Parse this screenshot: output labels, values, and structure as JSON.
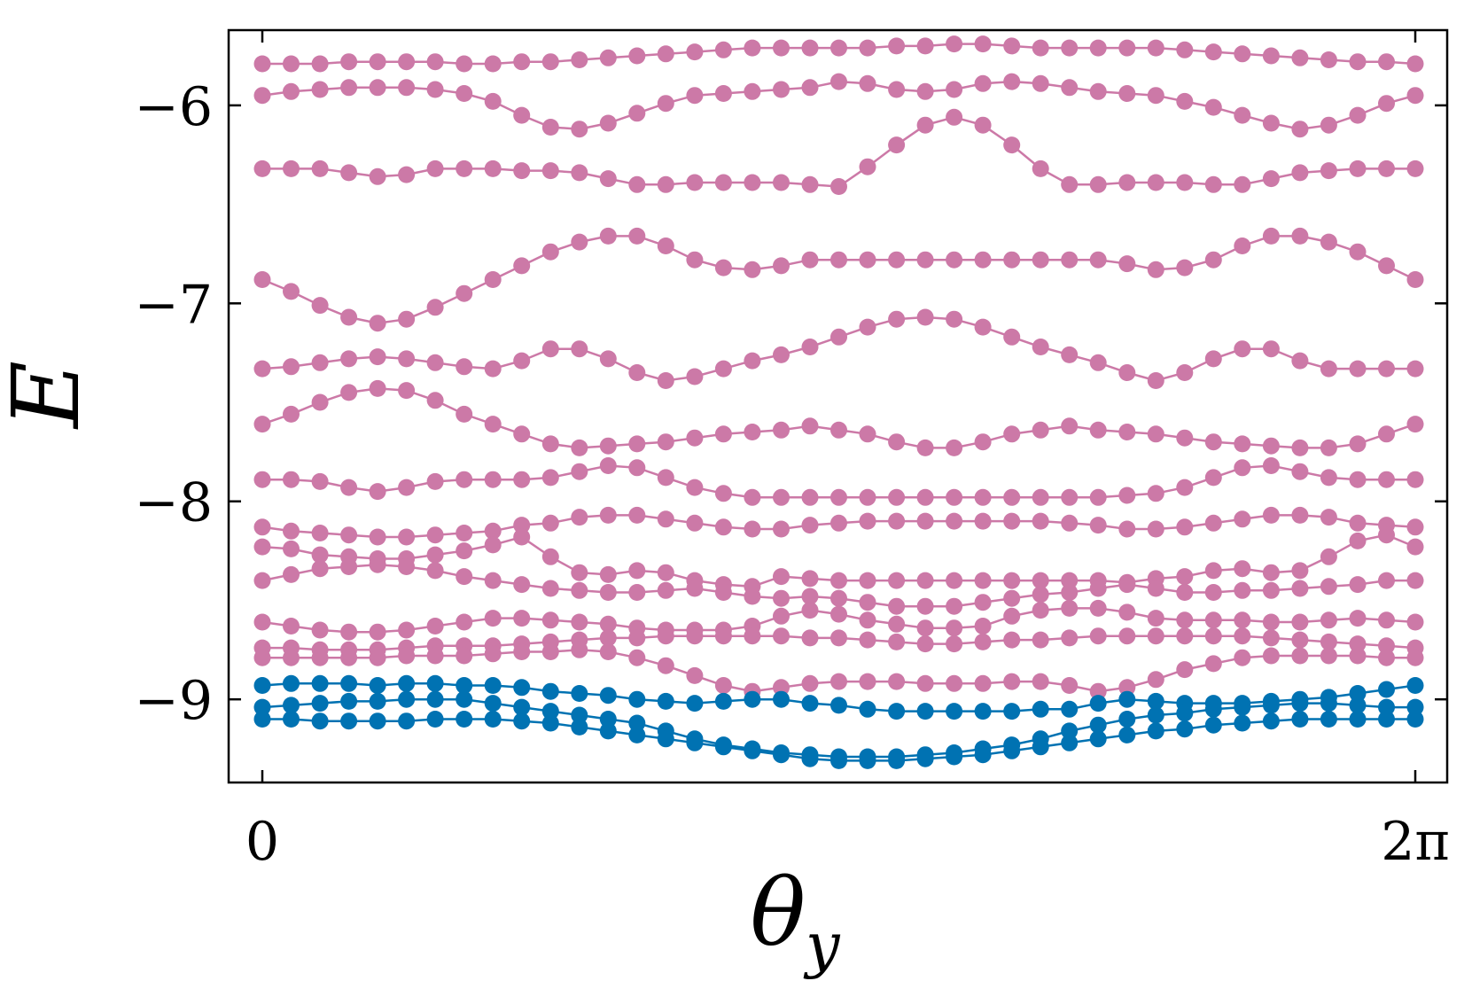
{
  "chart_data": {
    "type": "line",
    "xlabel": "θ",
    "xlabel_sub": "y",
    "ylabel": "E",
    "xlim": [
      0,
      6.2832
    ],
    "ylim": [
      -9.42,
      -5.62
    ],
    "x_ticks": [
      {
        "value": 0,
        "label": "0"
      },
      {
        "value": 6.2832,
        "label": "2π"
      }
    ],
    "y_ticks": [
      {
        "value": -6,
        "label": "−6"
      },
      {
        "value": -7,
        "label": "−7"
      },
      {
        "value": -8,
        "label": "−8"
      },
      {
        "value": -9,
        "label": "−9"
      }
    ],
    "grid": false,
    "n_points": 41,
    "colors": {
      "upper": "#cc79a7",
      "lower": "#0072b2"
    },
    "series": [
      {
        "group": "upper",
        "values": [
          -5.79,
          -5.79,
          -5.79,
          -5.78,
          -5.78,
          -5.78,
          -5.78,
          -5.79,
          -5.79,
          -5.78,
          -5.78,
          -5.77,
          -5.76,
          -5.75,
          -5.74,
          -5.73,
          -5.72,
          -5.71,
          -5.71,
          -5.71,
          -5.71,
          -5.71,
          -5.7,
          -5.7,
          -5.69,
          -5.69,
          -5.7,
          -5.71,
          -5.71,
          -5.71,
          -5.71,
          -5.71,
          -5.72,
          -5.73,
          -5.74,
          -5.75,
          -5.76,
          -5.77,
          -5.78,
          -5.78,
          -5.79
        ]
      },
      {
        "group": "upper",
        "values": [
          -5.95,
          -5.93,
          -5.92,
          -5.91,
          -5.91,
          -5.91,
          -5.92,
          -5.94,
          -5.98,
          -6.05,
          -6.11,
          -6.12,
          -6.09,
          -6.04,
          -5.99,
          -5.95,
          -5.94,
          -5.93,
          -5.92,
          -5.91,
          -5.88,
          -5.89,
          -5.92,
          -5.93,
          -5.92,
          -5.89,
          -5.88,
          -5.89,
          -5.91,
          -5.93,
          -5.94,
          -5.95,
          -5.98,
          -6.01,
          -6.05,
          -6.09,
          -6.12,
          -6.1,
          -6.05,
          -5.99,
          -5.95
        ]
      },
      {
        "group": "upper",
        "values": [
          -6.32,
          -6.32,
          -6.32,
          -6.34,
          -6.36,
          -6.35,
          -6.32,
          -6.32,
          -6.32,
          -6.33,
          -6.33,
          -6.34,
          -6.37,
          -6.4,
          -6.4,
          -6.39,
          -6.39,
          -6.39,
          -6.39,
          -6.4,
          -6.41,
          -6.31,
          -6.2,
          -6.1,
          -6.06,
          -6.1,
          -6.2,
          -6.32,
          -6.4,
          -6.4,
          -6.39,
          -6.39,
          -6.39,
          -6.4,
          -6.4,
          -6.37,
          -6.34,
          -6.33,
          -6.32,
          -6.32,
          -6.32
        ]
      },
      {
        "group": "upper",
        "values": [
          -6.88,
          -6.94,
          -7.01,
          -7.07,
          -7.1,
          -7.08,
          -7.02,
          -6.95,
          -6.88,
          -6.81,
          -6.74,
          -6.69,
          -6.66,
          -6.66,
          -6.71,
          -6.78,
          -6.82,
          -6.83,
          -6.81,
          -6.78,
          -6.78,
          -6.78,
          -6.78,
          -6.78,
          -6.78,
          -6.78,
          -6.78,
          -6.78,
          -6.78,
          -6.78,
          -6.8,
          -6.83,
          -6.82,
          -6.78,
          -6.71,
          -6.66,
          -6.66,
          -6.69,
          -6.74,
          -6.81,
          -6.88
        ]
      },
      {
        "group": "upper",
        "values": [
          -7.33,
          -7.32,
          -7.3,
          -7.28,
          -7.27,
          -7.28,
          -7.3,
          -7.32,
          -7.33,
          -7.29,
          -7.23,
          -7.23,
          -7.28,
          -7.35,
          -7.39,
          -7.37,
          -7.33,
          -7.29,
          -7.26,
          -7.22,
          -7.17,
          -7.12,
          -7.08,
          -7.07,
          -7.08,
          -7.12,
          -7.17,
          -7.22,
          -7.26,
          -7.3,
          -7.35,
          -7.39,
          -7.35,
          -7.28,
          -7.23,
          -7.23,
          -7.29,
          -7.33,
          -7.33,
          -7.33,
          -7.33
        ]
      },
      {
        "group": "upper",
        "values": [
          -7.61,
          -7.56,
          -7.5,
          -7.45,
          -7.43,
          -7.44,
          -7.49,
          -7.56,
          -7.61,
          -7.66,
          -7.71,
          -7.73,
          -7.72,
          -7.71,
          -7.7,
          -7.68,
          -7.66,
          -7.65,
          -7.64,
          -7.62,
          -7.64,
          -7.66,
          -7.7,
          -7.73,
          -7.73,
          -7.7,
          -7.66,
          -7.64,
          -7.62,
          -7.64,
          -7.65,
          -7.66,
          -7.68,
          -7.7,
          -7.71,
          -7.72,
          -7.73,
          -7.73,
          -7.71,
          -7.66,
          -7.61
        ]
      },
      {
        "group": "upper",
        "values": [
          -7.89,
          -7.89,
          -7.9,
          -7.93,
          -7.95,
          -7.93,
          -7.9,
          -7.89,
          -7.89,
          -7.89,
          -7.88,
          -7.85,
          -7.82,
          -7.83,
          -7.88,
          -7.93,
          -7.96,
          -7.98,
          -7.98,
          -7.98,
          -7.98,
          -7.98,
          -7.98,
          -7.98,
          -7.98,
          -7.98,
          -7.98,
          -7.98,
          -7.98,
          -7.98,
          -7.97,
          -7.96,
          -7.93,
          -7.88,
          -7.83,
          -7.82,
          -7.85,
          -7.88,
          -7.89,
          -7.89,
          -7.89
        ]
      },
      {
        "group": "upper",
        "values": [
          -8.13,
          -8.15,
          -8.16,
          -8.17,
          -8.18,
          -8.18,
          -8.17,
          -8.16,
          -8.15,
          -8.12,
          -8.11,
          -8.08,
          -8.07,
          -8.07,
          -8.09,
          -8.11,
          -8.13,
          -8.14,
          -8.14,
          -8.12,
          -8.11,
          -8.1,
          -8.1,
          -8.1,
          -8.1,
          -8.1,
          -8.1,
          -8.1,
          -8.11,
          -8.12,
          -8.14,
          -8.14,
          -8.13,
          -8.11,
          -8.09,
          -8.07,
          -8.07,
          -8.08,
          -8.11,
          -8.12,
          -8.13
        ]
      },
      {
        "group": "upper",
        "values": [
          -8.23,
          -8.24,
          -8.27,
          -8.28,
          -8.29,
          -8.29,
          -8.27,
          -8.25,
          -8.22,
          -8.18,
          -8.28,
          -8.36,
          -8.37,
          -8.35,
          -8.36,
          -8.4,
          -8.42,
          -8.43,
          -8.38,
          -8.39,
          -8.4,
          -8.4,
          -8.4,
          -8.4,
          -8.4,
          -8.4,
          -8.4,
          -8.4,
          -8.4,
          -8.4,
          -8.41,
          -8.39,
          -8.38,
          -8.35,
          -8.34,
          -8.36,
          -8.35,
          -8.28,
          -8.2,
          -8.17,
          -8.23
        ]
      },
      {
        "group": "upper",
        "values": [
          -8.4,
          -8.37,
          -8.34,
          -8.33,
          -8.32,
          -8.33,
          -8.35,
          -8.38,
          -8.4,
          -8.42,
          -8.44,
          -8.45,
          -8.46,
          -8.46,
          -8.45,
          -8.44,
          -8.46,
          -8.48,
          -8.49,
          -8.48,
          -8.49,
          -8.51,
          -8.53,
          -8.53,
          -8.53,
          -8.51,
          -8.49,
          -8.47,
          -8.46,
          -8.44,
          -8.42,
          -8.44,
          -8.46,
          -8.46,
          -8.45,
          -8.45,
          -8.44,
          -8.43,
          -8.42,
          -8.4,
          -8.4
        ]
      },
      {
        "group": "upper",
        "values": [
          -8.61,
          -8.63,
          -8.65,
          -8.66,
          -8.66,
          -8.65,
          -8.63,
          -8.61,
          -8.59,
          -8.59,
          -8.6,
          -8.61,
          -8.62,
          -8.64,
          -8.65,
          -8.65,
          -8.65,
          -8.63,
          -8.58,
          -8.55,
          -8.57,
          -8.6,
          -8.62,
          -8.64,
          -8.64,
          -8.63,
          -8.58,
          -8.55,
          -8.54,
          -8.54,
          -8.56,
          -8.59,
          -8.6,
          -8.6,
          -8.6,
          -8.61,
          -8.61,
          -8.6,
          -8.59,
          -8.6,
          -8.61
        ]
      },
      {
        "group": "upper",
        "values": [
          -8.74,
          -8.74,
          -8.75,
          -8.75,
          -8.75,
          -8.74,
          -8.73,
          -8.73,
          -8.73,
          -8.72,
          -8.71,
          -8.7,
          -8.69,
          -8.69,
          -8.68,
          -8.68,
          -8.68,
          -8.68,
          -8.68,
          -8.69,
          -8.69,
          -8.7,
          -8.71,
          -8.72,
          -8.72,
          -8.71,
          -8.7,
          -8.7,
          -8.69,
          -8.68,
          -8.68,
          -8.68,
          -8.68,
          -8.68,
          -8.68,
          -8.69,
          -8.7,
          -8.71,
          -8.72,
          -8.73,
          -8.74
        ]
      },
      {
        "group": "upper",
        "values": [
          -8.79,
          -8.79,
          -8.79,
          -8.79,
          -8.79,
          -8.78,
          -8.78,
          -8.78,
          -8.77,
          -8.76,
          -8.76,
          -8.75,
          -8.76,
          -8.79,
          -8.83,
          -8.88,
          -8.93,
          -8.96,
          -8.94,
          -8.92,
          -8.91,
          -8.91,
          -8.91,
          -8.92,
          -8.92,
          -8.92,
          -8.91,
          -8.91,
          -8.93,
          -8.96,
          -8.94,
          -8.9,
          -8.85,
          -8.82,
          -8.79,
          -8.78,
          -8.78,
          -8.78,
          -8.78,
          -8.79,
          -8.79
        ]
      },
      {
        "group": "lower",
        "values": [
          -8.93,
          -8.92,
          -8.92,
          -8.92,
          -8.93,
          -8.92,
          -8.92,
          -8.93,
          -8.93,
          -8.94,
          -8.96,
          -8.97,
          -8.98,
          -9.0,
          -9.01,
          -9.02,
          -9.01,
          -9.0,
          -9.0,
          -9.02,
          -9.03,
          -9.05,
          -9.06,
          -9.06,
          -9.06,
          -9.06,
          -9.06,
          -9.05,
          -9.05,
          -9.02,
          -9.0,
          -9.01,
          -9.02,
          -9.02,
          -9.02,
          -9.01,
          -9.0,
          -8.99,
          -8.97,
          -8.95,
          -8.93
        ]
      },
      {
        "group": "lower",
        "values": [
          -9.04,
          -9.03,
          -9.02,
          -9.01,
          -9.01,
          -9.0,
          -9.0,
          -9.0,
          -9.02,
          -9.04,
          -9.06,
          -9.08,
          -9.1,
          -9.12,
          -9.16,
          -9.2,
          -9.23,
          -9.25,
          -9.27,
          -9.28,
          -9.29,
          -9.29,
          -9.29,
          -9.28,
          -9.27,
          -9.25,
          -9.23,
          -9.2,
          -9.16,
          -9.13,
          -9.1,
          -9.08,
          -9.07,
          -9.05,
          -9.04,
          -9.03,
          -9.02,
          -9.02,
          -9.03,
          -9.04,
          -9.04
        ]
      },
      {
        "group": "lower",
        "values": [
          -9.1,
          -9.1,
          -9.11,
          -9.11,
          -9.11,
          -9.11,
          -9.1,
          -9.1,
          -9.1,
          -9.11,
          -9.12,
          -9.14,
          -9.16,
          -9.18,
          -9.2,
          -9.22,
          -9.24,
          -9.26,
          -9.28,
          -9.3,
          -9.31,
          -9.31,
          -9.31,
          -9.3,
          -9.29,
          -9.28,
          -9.26,
          -9.24,
          -9.22,
          -9.2,
          -9.18,
          -9.16,
          -9.15,
          -9.13,
          -9.12,
          -9.11,
          -9.1,
          -9.1,
          -9.1,
          -9.1,
          -9.1
        ]
      }
    ]
  }
}
